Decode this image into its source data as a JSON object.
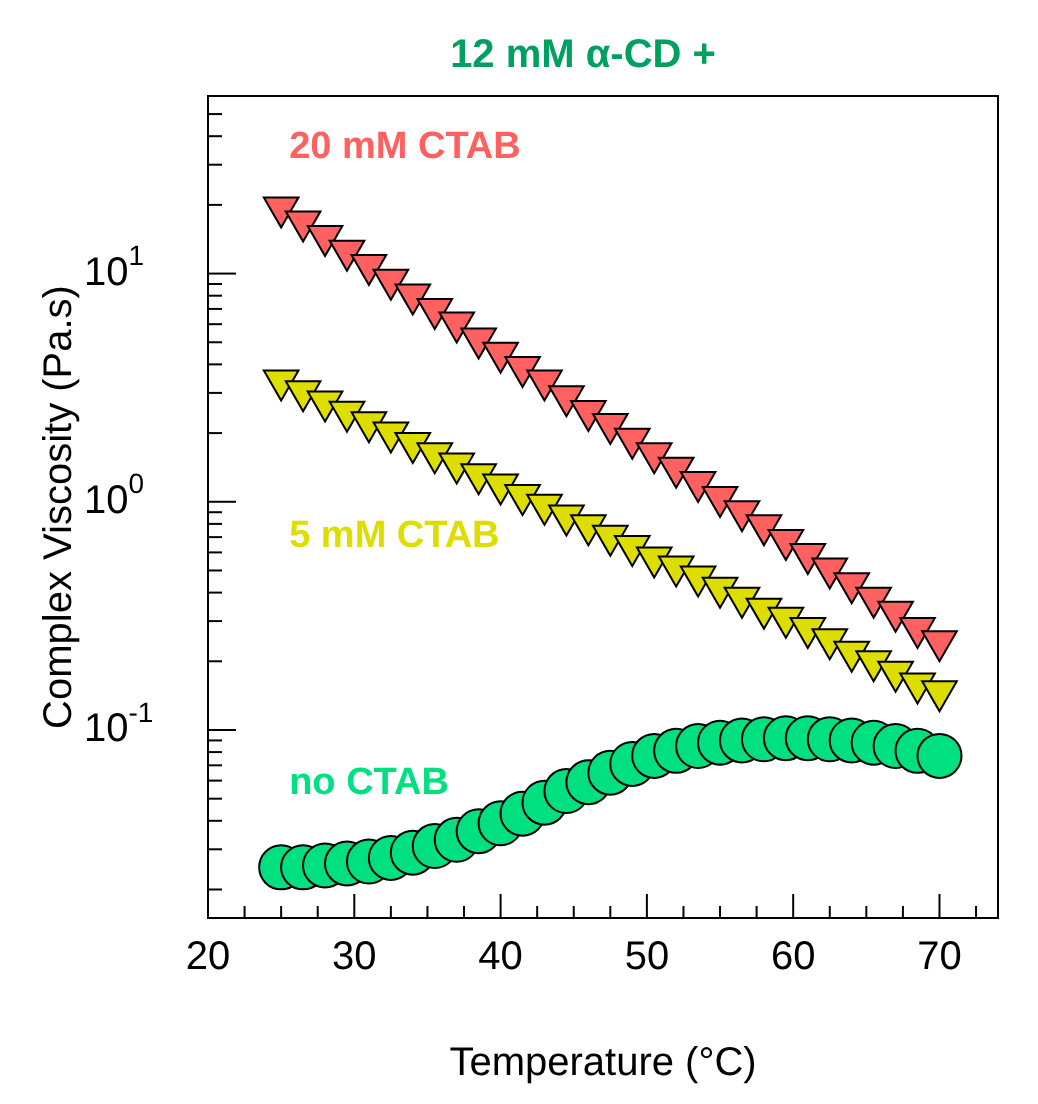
{
  "chart_data": {
    "type": "scatter",
    "title": "12 mM α-CD +",
    "xlabel": "Temperature (°C)",
    "ylabel": "Complex Viscosity (Pa.s)",
    "log": "y",
    "grid": false,
    "legend": false,
    "xlim": [
      20,
      74
    ],
    "xticks": [
      20,
      {
        "value": 22.5,
        "label": null
      },
      {
        "value": 25,
        "label": null
      },
      {
        "value": 27.5,
        "label": null
      },
      30,
      {
        "value": 32.5,
        "label": null
      },
      {
        "value": 35,
        "label": null
      },
      {
        "value": 37.5,
        "label": null
      },
      40,
      {
        "value": 42.5,
        "label": null
      },
      {
        "value": 45,
        "label": null
      },
      {
        "value": 47.5,
        "label": null
      },
      50,
      {
        "value": 52.5,
        "label": null
      },
      {
        "value": 55,
        "label": null
      },
      {
        "value": 57.5,
        "label": null
      },
      60,
      {
        "value": 62.5,
        "label": null
      },
      {
        "value": 65,
        "label": null
      },
      {
        "value": 67.5,
        "label": null
      },
      70,
      {
        "value": 72.5,
        "label": null
      }
    ],
    "ylim": [
      0.015,
      60
    ],
    "yticks": [
      {
        "value": 0.02,
        "label": null
      },
      {
        "value": 0.03,
        "label": null
      },
      {
        "value": 0.04,
        "label": null
      },
      {
        "value": 0.05,
        "label": null
      },
      {
        "value": 0.06,
        "label": null
      },
      {
        "value": 0.07,
        "label": null
      },
      {
        "value": 0.08,
        "label": null
      },
      {
        "value": 0.09,
        "label": null
      },
      {
        "value": 0.1,
        "label": "10$^{-1}$"
      },
      {
        "value": 0.2,
        "label": null
      },
      {
        "value": 0.3,
        "label": null
      },
      {
        "value": 0.4,
        "label": null
      },
      {
        "value": 0.5,
        "label": null
      },
      {
        "value": 0.6,
        "label": null
      },
      {
        "value": 0.7,
        "label": null
      },
      {
        "value": 0.8,
        "label": null
      },
      {
        "value": 0.9,
        "label": null
      },
      {
        "value": 1,
        "label": "10$^{0}$"
      },
      {
        "value": 2,
        "label": null
      },
      {
        "value": 3,
        "label": null
      },
      {
        "value": 4,
        "label": null
      },
      {
        "value": 5,
        "label": null
      },
      {
        "value": 6,
        "label": null
      },
      {
        "value": 7,
        "label": null
      },
      {
        "value": 8,
        "label": null
      },
      {
        "value": 9,
        "label": null
      },
      {
        "value": 10,
        "label": "10$^{1}$"
      },
      {
        "value": 20,
        "label": null
      },
      {
        "value": 30,
        "label": null
      },
      {
        "value": 40,
        "label": null
      },
      {
        "value": 50,
        "label": null
      }
    ],
    "x": [
      25,
      26.5,
      28,
      29.5,
      31,
      32.5,
      34,
      35.5,
      37,
      38.5,
      40,
      41.5,
      43,
      44.5,
      46,
      47.5,
      49,
      50.5,
      52,
      53.5,
      55,
      56.5,
      58,
      59.5,
      61,
      62.5,
      64,
      65.5,
      67,
      68.5,
      70
    ],
    "series": [
      {
        "name": "20 mM CTAB",
        "color": "#ff6060",
        "marker": "triangle",
        "values": [
          19.5,
          16.9,
          14.6,
          12.6,
          10.9,
          9.4,
          8.1,
          7.0,
          6.1,
          5.2,
          4.5,
          3.9,
          3.4,
          2.9,
          2.5,
          2.19,
          1.89,
          1.63,
          1.41,
          1.22,
          1.05,
          0.91,
          0.79,
          0.68,
          0.59,
          0.51,
          0.44,
          0.38,
          0.33,
          0.28,
          0.245
        ]
      },
      {
        "name": "5 mM CTAB",
        "color": "#dddd00",
        "marker": "triangle",
        "values": [
          3.4,
          3.05,
          2.75,
          2.48,
          2.23,
          2.01,
          1.81,
          1.63,
          1.47,
          1.32,
          1.19,
          1.07,
          0.97,
          0.87,
          0.79,
          0.71,
          0.64,
          0.57,
          0.52,
          0.47,
          0.42,
          0.38,
          0.34,
          0.31,
          0.28,
          0.25,
          0.22,
          0.2,
          0.18,
          0.16,
          0.148
        ]
      },
      {
        "name": "no CTAB",
        "color": "#00e080",
        "marker": "circle",
        "values": [
          0.025,
          0.025,
          0.0255,
          0.026,
          0.0265,
          0.0275,
          0.029,
          0.031,
          0.033,
          0.036,
          0.039,
          0.043,
          0.048,
          0.054,
          0.059,
          0.065,
          0.071,
          0.077,
          0.081,
          0.085,
          0.088,
          0.09,
          0.091,
          0.092,
          0.092,
          0.091,
          0.09,
          0.088,
          0.085,
          0.081,
          0.077
        ]
      }
    ]
  }
}
